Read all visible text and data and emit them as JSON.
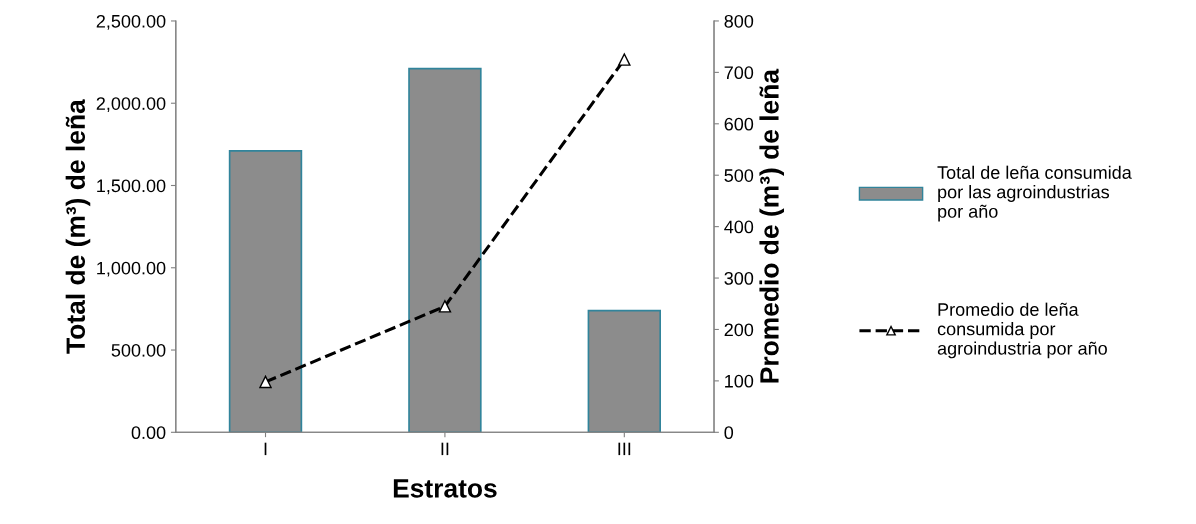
{
  "chart_data": {
    "type": "bar",
    "xlabel": "Estratos",
    "ylabel": "Total de (m³) de leña",
    "y2label": "Promedio de (m³) de leña",
    "categories": [
      "I",
      "II",
      "III"
    ],
    "series": [
      {
        "name": "Total de leña consumida por las agroindustrias por año",
        "color": "#8c8c8c",
        "values": [
          1710,
          2210,
          740
        ]
      },
      {
        "name": "Promedio de leña consumida por agroindustria por año",
        "type": "line",
        "axis": "y2",
        "color": "#000000",
        "marker": "triangle",
        "line_style": "dashed",
        "values": [
          98,
          245,
          725
        ]
      }
    ],
    "ylim": [
      0,
      2500
    ],
    "yticks": [
      {
        "value": 0,
        "label": "0.00"
      },
      {
        "value": 500,
        "label": "500.00"
      },
      {
        "value": 1000,
        "label": "1,000.00"
      },
      {
        "value": 1500,
        "label": "1,500.00"
      },
      {
        "value": 2000,
        "label": "2,000.00"
      },
      {
        "value": 2500,
        "label": "2,500.00"
      }
    ],
    "y2lim": [
      0,
      800
    ],
    "y2ticks": [
      0,
      100,
      200,
      300,
      400,
      500,
      600,
      700,
      800
    ],
    "grid": false,
    "legend": "right"
  }
}
